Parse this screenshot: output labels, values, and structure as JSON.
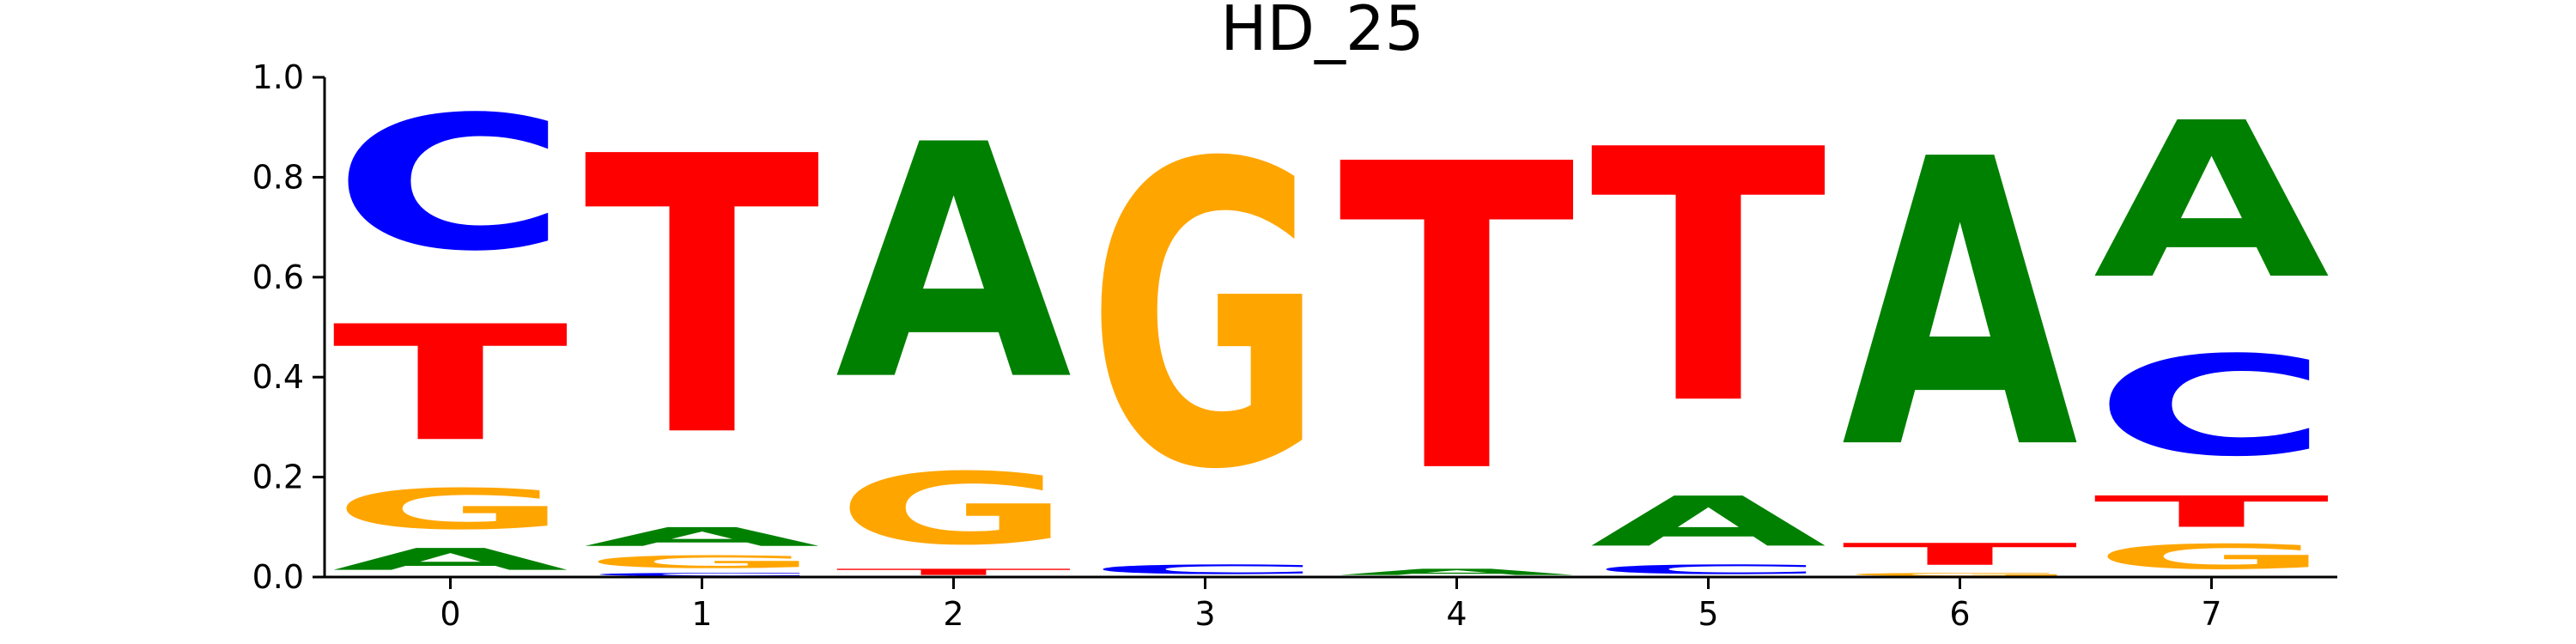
{
  "chart_data": {
    "type": "sequence-logo",
    "title": "HD_25",
    "xlabel": "",
    "ylabel": "",
    "ylim": [
      0,
      1.0
    ],
    "y_ticks": [
      "0.0",
      "0.2",
      "0.4",
      "0.6",
      "0.8",
      "1.0"
    ],
    "x_ticks": [
      "0",
      "1",
      "2",
      "3",
      "4",
      "5",
      "6",
      "7"
    ],
    "colors": {
      "A": "#008000",
      "C": "#0000ff",
      "G": "#ffa500",
      "T": "#ff0000"
    },
    "positions": [
      {
        "index": "0",
        "stack": [
          {
            "base": "A",
            "value": 0.07
          },
          {
            "base": "G",
            "value": 0.13
          },
          {
            "base": "T",
            "value": 0.37
          },
          {
            "base": "C",
            "value": 0.43
          }
        ]
      },
      {
        "index": "1",
        "stack": [
          {
            "base": "C",
            "value": 0.01
          },
          {
            "base": "G",
            "value": 0.04
          },
          {
            "base": "A",
            "value": 0.06
          },
          {
            "base": "T",
            "value": 0.89
          }
        ]
      },
      {
        "index": "2",
        "stack": [
          {
            "base": "T",
            "value": 0.02
          },
          {
            "base": "G",
            "value": 0.23
          },
          {
            "base": "A",
            "value": 0.75
          }
        ]
      },
      {
        "index": "3",
        "stack": [
          {
            "base": "C",
            "value": 0.03
          },
          {
            "base": "G",
            "value": 0.97
          }
        ]
      },
      {
        "index": "4",
        "stack": [
          {
            "base": "A",
            "value": 0.02
          },
          {
            "base": "T",
            "value": 0.98
          }
        ]
      },
      {
        "index": "5",
        "stack": [
          {
            "base": "C",
            "value": 0.03
          },
          {
            "base": "A",
            "value": 0.16
          },
          {
            "base": "T",
            "value": 0.81
          }
        ]
      },
      {
        "index": "6",
        "stack": [
          {
            "base": "G",
            "value": 0.01
          },
          {
            "base": "T",
            "value": 0.07
          },
          {
            "base": "A",
            "value": 0.92
          }
        ]
      },
      {
        "index": "7",
        "stack": [
          {
            "base": "G",
            "value": 0.08
          },
          {
            "base": "T",
            "value": 0.1
          },
          {
            "base": "C",
            "value": 0.32
          },
          {
            "base": "A",
            "value": 0.5
          }
        ]
      }
    ]
  }
}
